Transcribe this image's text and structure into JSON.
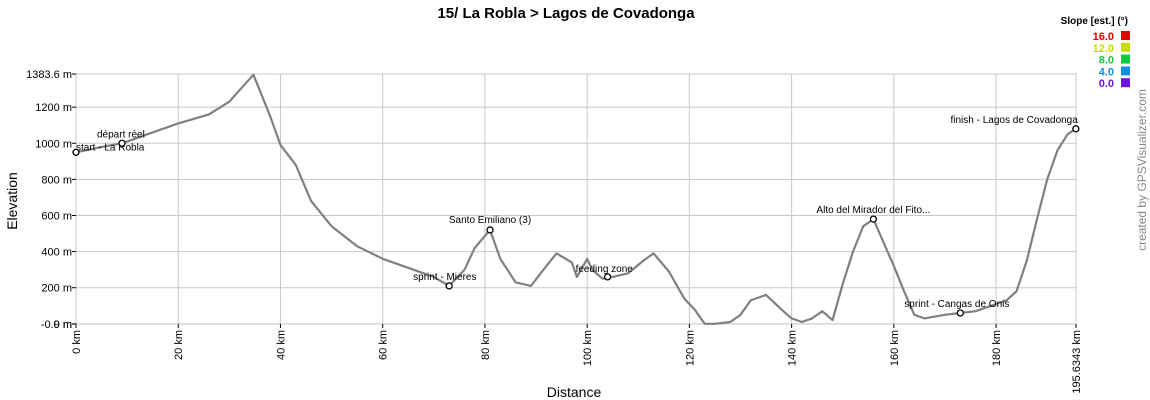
{
  "chart_data": {
    "type": "line",
    "title": "15/ La Robla > Lagos de Covadonga",
    "xlabel": "Distance",
    "ylabel": "Elevation",
    "xlim": [
      0,
      195.6343
    ],
    "ylim": [
      -0.9,
      1383.6
    ],
    "x_ticks": [
      {
        "value": 0,
        "label": "0 km"
      },
      {
        "value": 20,
        "label": "20 km"
      },
      {
        "value": 40,
        "label": "40 km"
      },
      {
        "value": 60,
        "label": "60 km"
      },
      {
        "value": 80,
        "label": "80 km"
      },
      {
        "value": 100,
        "label": "100 km"
      },
      {
        "value": 120,
        "label": "120 km"
      },
      {
        "value": 140,
        "label": "140 km"
      },
      {
        "value": 160,
        "label": "160 km"
      },
      {
        "value": 180,
        "label": "180 km"
      },
      {
        "value": 195.6343,
        "label": "195.6343 km"
      }
    ],
    "y_ticks": [
      {
        "value": 1383.6,
        "label": "1383.6 m"
      },
      {
        "value": 1200,
        "label": "1200 m"
      },
      {
        "value": 1000,
        "label": "1000 m"
      },
      {
        "value": 800,
        "label": "800 m"
      },
      {
        "value": 600,
        "label": "600 m"
      },
      {
        "value": 400,
        "label": "400 m"
      },
      {
        "value": 200,
        "label": "200 m"
      },
      {
        "value": 0,
        "label": "0 m"
      },
      {
        "value": -0.9,
        "label": "-0.9 m"
      }
    ],
    "grid": true,
    "x": [
      0,
      5,
      9,
      14,
      20,
      26,
      30,
      34.7,
      38,
      40,
      43,
      46,
      50,
      55,
      60,
      66,
      70,
      73,
      76,
      78,
      81,
      83,
      86,
      89,
      92,
      94,
      97,
      98,
      100,
      101,
      103,
      105,
      108,
      111,
      113,
      116,
      119,
      121,
      123,
      125,
      128,
      130,
      132,
      135,
      138,
      140,
      142,
      144,
      146,
      148,
      150,
      152,
      154,
      156,
      158,
      160,
      162,
      164,
      166,
      168,
      170,
      173,
      176,
      179,
      182,
      184,
      186,
      188,
      190,
      192,
      194,
      195.6343
    ],
    "y": [
      950,
      980,
      1000,
      1050,
      1110,
      1160,
      1230,
      1380,
      1150,
      990,
      880,
      680,
      540,
      430,
      360,
      300,
      260,
      210,
      300,
      420,
      520,
      360,
      230,
      210,
      320,
      390,
      340,
      260,
      360,
      300,
      250,
      260,
      280,
      350,
      390,
      290,
      140,
      80,
      0,
      0,
      10,
      50,
      130,
      160,
      80,
      30,
      10,
      30,
      70,
      20,
      220,
      400,
      540,
      580,
      450,
      320,
      180,
      50,
      30,
      40,
      50,
      60,
      70,
      100,
      130,
      180,
      350,
      580,
      800,
      960,
      1050,
      1080
    ],
    "waypoints": [
      {
        "x": 0,
        "y": 950,
        "label": "start - La Robla"
      },
      {
        "x": 9,
        "y": 1000,
        "label": "départ réel"
      },
      {
        "x": 81,
        "y": 520,
        "label": "Santo Emiliano (3)"
      },
      {
        "x": 73,
        "y": 210,
        "label": "sprint - Mieres"
      },
      {
        "x": 104,
        "y": 260,
        "label": "feeding zone"
      },
      {
        "x": 156,
        "y": 580,
        "label": "Alto del Mirador del Fito..."
      },
      {
        "x": 173,
        "y": 60,
        "label": "sprint - Cangas de Onis"
      },
      {
        "x": 195.6,
        "y": 1080,
        "label": "finish - Lagos de Covadonga"
      }
    ],
    "legend": {
      "title": "Slope [est.] (°)",
      "placement": "top-right",
      "items": [
        {
          "label": "16.0",
          "color": "#e00000"
        },
        {
          "label": "12.0",
          "color": "#c8dc00"
        },
        {
          "label": "8.0",
          "color": "#10c840"
        },
        {
          "label": "4.0",
          "color": "#1090e0"
        },
        {
          "label": "0.0",
          "color": "#7010e0"
        }
      ]
    },
    "line_color": "#808080",
    "credit": "created by GPSVisualizer.com"
  }
}
